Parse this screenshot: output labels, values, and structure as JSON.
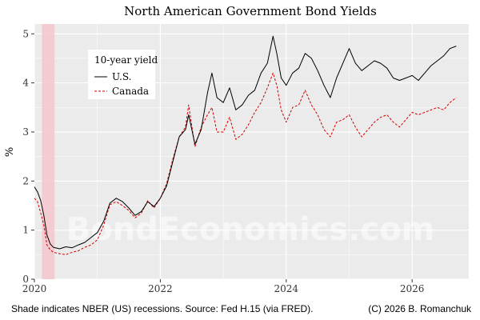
{
  "chart_data": {
    "type": "line",
    "title": "North American Government Bond Yields",
    "xlabel": "",
    "ylabel": "%",
    "xlim": [
      2020.0,
      2026.9
    ],
    "ylim": [
      0,
      5.2
    ],
    "x_ticks": [
      "2020",
      "2022",
      "2024",
      "2026"
    ],
    "y_ticks": [
      "0",
      "1",
      "2",
      "3",
      "4",
      "5"
    ],
    "grid": true,
    "legend": {
      "title": "10-year yield",
      "position": "top-left"
    },
    "recession_shading": [
      [
        2020.12,
        2020.32
      ]
    ],
    "series": [
      {
        "name": "U.S.",
        "color": "#000000",
        "dash": "solid",
        "points": [
          [
            2020.0,
            1.88
          ],
          [
            2020.05,
            1.78
          ],
          [
            2020.1,
            1.6
          ],
          [
            2020.15,
            1.3
          ],
          [
            2020.2,
            0.9
          ],
          [
            2020.25,
            0.72
          ],
          [
            2020.3,
            0.65
          ],
          [
            2020.4,
            0.62
          ],
          [
            2020.5,
            0.66
          ],
          [
            2020.6,
            0.64
          ],
          [
            2020.7,
            0.7
          ],
          [
            2020.8,
            0.75
          ],
          [
            2020.9,
            0.85
          ],
          [
            2021.0,
            0.95
          ],
          [
            2021.1,
            1.18
          ],
          [
            2021.2,
            1.55
          ],
          [
            2021.3,
            1.65
          ],
          [
            2021.4,
            1.58
          ],
          [
            2021.5,
            1.45
          ],
          [
            2021.6,
            1.3
          ],
          [
            2021.7,
            1.38
          ],
          [
            2021.8,
            1.58
          ],
          [
            2021.9,
            1.48
          ],
          [
            2022.0,
            1.65
          ],
          [
            2022.1,
            1.9
          ],
          [
            2022.2,
            2.4
          ],
          [
            2022.3,
            2.9
          ],
          [
            2022.4,
            3.05
          ],
          [
            2022.45,
            3.35
          ],
          [
            2022.55,
            2.75
          ],
          [
            2022.65,
            3.05
          ],
          [
            2022.75,
            3.8
          ],
          [
            2022.82,
            4.2
          ],
          [
            2022.9,
            3.7
          ],
          [
            2023.0,
            3.6
          ],
          [
            2023.1,
            3.9
          ],
          [
            2023.2,
            3.45
          ],
          [
            2023.3,
            3.55
          ],
          [
            2023.4,
            3.75
          ],
          [
            2023.5,
            3.85
          ],
          [
            2023.6,
            4.2
          ],
          [
            2023.7,
            4.4
          ],
          [
            2023.79,
            4.95
          ],
          [
            2023.85,
            4.6
          ],
          [
            2023.92,
            4.1
          ],
          [
            2024.0,
            3.95
          ],
          [
            2024.1,
            4.2
          ],
          [
            2024.2,
            4.3
          ],
          [
            2024.3,
            4.6
          ],
          [
            2024.4,
            4.5
          ],
          [
            2024.5,
            4.25
          ],
          [
            2024.6,
            3.95
          ],
          [
            2024.7,
            3.7
          ],
          [
            2024.8,
            4.1
          ],
          [
            2024.9,
            4.4
          ],
          [
            2025.0,
            4.7
          ],
          [
            2025.1,
            4.4
          ],
          [
            2025.2,
            4.25
          ],
          [
            2025.3,
            4.35
          ],
          [
            2025.4,
            4.45
          ],
          [
            2025.5,
            4.4
          ],
          [
            2025.6,
            4.3
          ],
          [
            2025.7,
            4.1
          ],
          [
            2025.8,
            4.05
          ],
          [
            2025.9,
            4.1
          ],
          [
            2026.0,
            4.15
          ],
          [
            2026.1,
            4.05
          ],
          [
            2026.2,
            4.2
          ],
          [
            2026.3,
            4.35
          ],
          [
            2026.4,
            4.45
          ],
          [
            2026.5,
            4.55
          ],
          [
            2026.6,
            4.7
          ],
          [
            2026.7,
            4.75
          ]
        ]
      },
      {
        "name": "Canada",
        "color": "#d40000",
        "dash": "dashed",
        "points": [
          [
            2020.0,
            1.65
          ],
          [
            2020.05,
            1.58
          ],
          [
            2020.1,
            1.35
          ],
          [
            2020.15,
            1.1
          ],
          [
            2020.2,
            0.7
          ],
          [
            2020.25,
            0.6
          ],
          [
            2020.3,
            0.55
          ],
          [
            2020.4,
            0.52
          ],
          [
            2020.5,
            0.5
          ],
          [
            2020.6,
            0.55
          ],
          [
            2020.7,
            0.58
          ],
          [
            2020.8,
            0.65
          ],
          [
            2020.9,
            0.7
          ],
          [
            2021.0,
            0.8
          ],
          [
            2021.1,
            1.1
          ],
          [
            2021.2,
            1.52
          ],
          [
            2021.3,
            1.58
          ],
          [
            2021.4,
            1.5
          ],
          [
            2021.5,
            1.4
          ],
          [
            2021.6,
            1.25
          ],
          [
            2021.7,
            1.35
          ],
          [
            2021.8,
            1.6
          ],
          [
            2021.9,
            1.45
          ],
          [
            2022.0,
            1.65
          ],
          [
            2022.1,
            1.95
          ],
          [
            2022.2,
            2.45
          ],
          [
            2022.3,
            2.9
          ],
          [
            2022.4,
            3.1
          ],
          [
            2022.45,
            3.55
          ],
          [
            2022.55,
            2.7
          ],
          [
            2022.65,
            3.1
          ],
          [
            2022.75,
            3.35
          ],
          [
            2022.82,
            3.5
          ],
          [
            2022.9,
            3.0
          ],
          [
            2023.0,
            3.0
          ],
          [
            2023.1,
            3.3
          ],
          [
            2023.2,
            2.85
          ],
          [
            2023.3,
            2.95
          ],
          [
            2023.4,
            3.15
          ],
          [
            2023.5,
            3.4
          ],
          [
            2023.6,
            3.6
          ],
          [
            2023.7,
            3.9
          ],
          [
            2023.79,
            4.2
          ],
          [
            2023.85,
            3.95
          ],
          [
            2023.92,
            3.45
          ],
          [
            2024.0,
            3.2
          ],
          [
            2024.1,
            3.5
          ],
          [
            2024.2,
            3.55
          ],
          [
            2024.3,
            3.85
          ],
          [
            2024.4,
            3.55
          ],
          [
            2024.5,
            3.35
          ],
          [
            2024.6,
            3.05
          ],
          [
            2024.7,
            2.9
          ],
          [
            2024.8,
            3.2
          ],
          [
            2024.9,
            3.25
          ],
          [
            2025.0,
            3.35
          ],
          [
            2025.1,
            3.1
          ],
          [
            2025.2,
            2.9
          ],
          [
            2025.3,
            3.05
          ],
          [
            2025.4,
            3.2
          ],
          [
            2025.5,
            3.3
          ],
          [
            2025.6,
            3.35
          ],
          [
            2025.7,
            3.2
          ],
          [
            2025.8,
            3.1
          ],
          [
            2025.9,
            3.25
          ],
          [
            2026.0,
            3.4
          ],
          [
            2026.1,
            3.35
          ],
          [
            2026.2,
            3.4
          ],
          [
            2026.3,
            3.45
          ],
          [
            2026.4,
            3.5
          ],
          [
            2026.5,
            3.45
          ],
          [
            2026.6,
            3.6
          ],
          [
            2026.7,
            3.7
          ]
        ]
      }
    ]
  },
  "watermark": "BondEconomics.com",
  "caption_left": "Shade indicates NBER (US) recessions. Source: Fed H.15 (via FRED).",
  "caption_right": "(C) 2026 B. Romanchuk",
  "colors": {
    "panel_bg": "#ebebeb",
    "grid": "#ffffff",
    "recession": "#f5c6cb"
  }
}
